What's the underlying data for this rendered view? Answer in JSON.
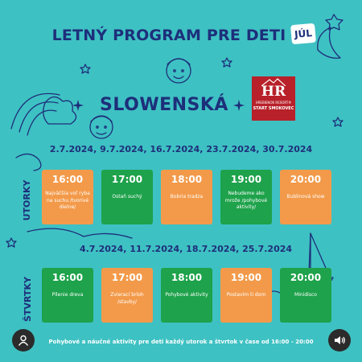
{
  "poster": {
    "title": "LETNÝ PROGRAM PRE DETI",
    "month": "JÚL",
    "brand": "SLOWENSKÁ",
    "logo": {
      "mark": "HR",
      "subtitle": "HREBIENOK RESORT®",
      "location": "START SMOKOVEC"
    },
    "colors": {
      "background": "#3ec1c3",
      "text_navy": "#1d2f7a",
      "card_orange": "#f39a4a",
      "card_green": "#1ea24b",
      "logo_red": "#b8212a"
    }
  },
  "schedule": {
    "tuesday": {
      "day": "UTORKY",
      "dates": "2.7.2024, 9.7.2024, 16.7.2024, 23.7.2024, 30.7.2024",
      "events": [
        {
          "time": "16:00",
          "activity": "Najväčšia voľ ryba na suchu /tvorivé dielne/",
          "color": "orange"
        },
        {
          "time": "17:00",
          "activity": "Ostaň suchý",
          "color": "green"
        },
        {
          "time": "18:00",
          "activity": "Bobria tradza",
          "color": "orange"
        },
        {
          "time": "19:00",
          "activity": "Nebudeme ako mrože /pohybové aktivity/",
          "color": "green"
        },
        {
          "time": "20:00",
          "activity": "Bublinová show",
          "color": "orange"
        }
      ]
    },
    "thursday": {
      "day": "ŠTVRTKY",
      "dates": "4.7.2024, 11.7.2024, 18.7.2024, 25.7.2024",
      "events": [
        {
          "time": "16:00",
          "activity": "Pílenie dreva",
          "color": "green"
        },
        {
          "time": "17:00",
          "activity": "Zvierací brloh /stavby/",
          "color": "orange"
        },
        {
          "time": "18:00",
          "activity": "Pohybové aktivity",
          "color": "green"
        },
        {
          "time": "19:00",
          "activity": "Postavím ti dom",
          "color": "orange"
        },
        {
          "time": "20:00",
          "activity": "Minidisco",
          "color": "green"
        }
      ]
    }
  },
  "footer": "Pohybové a náučné aktivity pre deti každý utorok a štvrtok v čase od 16:00 - 20:00",
  "controls": {
    "left_icon": "user-icon",
    "right_icon": "speaker-icon"
  }
}
